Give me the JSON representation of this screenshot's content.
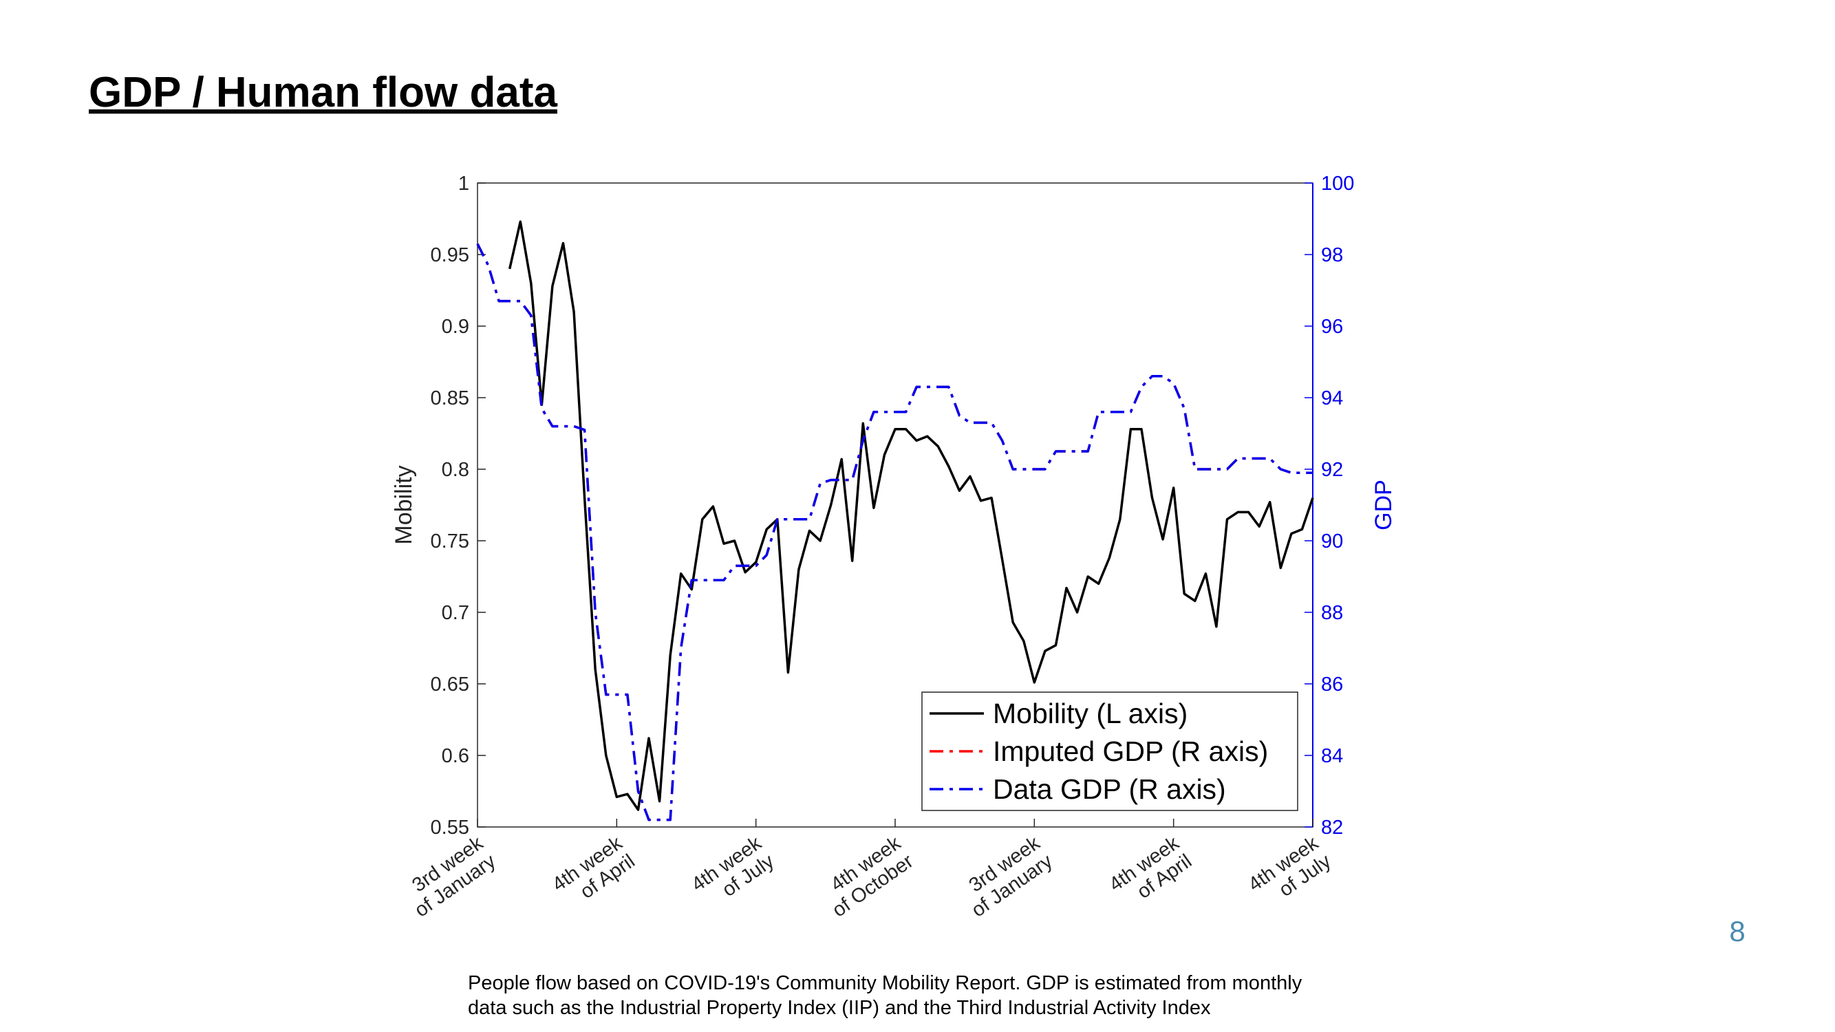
{
  "page_title": "GDP / Human flow data",
  "page_number": "8",
  "footnote": [
    "People flow based on COVID-19's Community Mobility Report. GDP is estimated from monthly",
    "data such as the Industrial Property Index (IIP) and the Third Industrial Activity Index"
  ],
  "chart_data": {
    "type": "line",
    "ylabel": "Mobility",
    "y2label": "GDP",
    "xlim": [
      0,
      78
    ],
    "xticks": [
      {
        "value": 0,
        "label": [
          "3rd week",
          "of January"
        ]
      },
      {
        "value": 13,
        "label": [
          "4th week",
          "of April"
        ]
      },
      {
        "value": 26,
        "label": [
          "4th week",
          "of July"
        ]
      },
      {
        "value": 39,
        "label": [
          "4th week",
          "of October"
        ]
      },
      {
        "value": 52,
        "label": [
          "3rd week",
          "of January"
        ]
      },
      {
        "value": 65,
        "label": [
          "4th week",
          "of April"
        ]
      },
      {
        "value": 78,
        "label": [
          "4th week",
          "of July"
        ]
      }
    ],
    "ylim": [
      0.55,
      1
    ],
    "yticks": [
      0.55,
      0.6,
      0.65,
      0.7,
      0.75,
      0.8,
      0.85,
      0.9,
      0.95,
      1
    ],
    "y2lim": [
      82,
      100
    ],
    "y2ticks": [
      82,
      84,
      86,
      88,
      90,
      92,
      94,
      96,
      98,
      100
    ],
    "y2color": "#0000ee",
    "legend": "lower right",
    "x": [
      0,
      1,
      2,
      3,
      4,
      5,
      6,
      7,
      8,
      9,
      10,
      11,
      12,
      13,
      14,
      15,
      16,
      17,
      18,
      19,
      20,
      21,
      22,
      23,
      24,
      25,
      26,
      27,
      28,
      29,
      30,
      31,
      32,
      33,
      34,
      35,
      36,
      37,
      38,
      39,
      40,
      41,
      42,
      43,
      44,
      45,
      46,
      47,
      48,
      49,
      50,
      51,
      52,
      53,
      54,
      55,
      56,
      57,
      58,
      59,
      60,
      61,
      62,
      63,
      64,
      65,
      66,
      67,
      68,
      69,
      70,
      71,
      72,
      73,
      74,
      75,
      76,
      77,
      78
    ],
    "series": [
      {
        "name": "Mobility (L axis)",
        "color": "#000000",
        "style": "solid",
        "values": [
          null,
          null,
          null,
          0.94,
          0.973,
          0.93,
          0.845,
          0.928,
          0.958,
          0.91,
          0.78,
          0.66,
          0.6,
          0.571,
          0.573,
          0.562,
          0.612,
          0.568,
          0.67,
          0.727,
          0.716,
          0.765,
          0.774,
          0.748,
          0.75,
          0.728,
          0.735,
          0.758,
          0.765,
          0.658,
          0.73,
          0.757,
          0.75,
          0.775,
          0.807,
          0.736,
          0.832,
          0.773,
          0.81,
          0.828,
          0.828,
          0.82,
          0.823,
          0.816,
          0.802,
          0.785,
          0.795,
          0.778,
          0.78,
          0.737,
          0.693,
          0.68,
          0.651,
          0.673,
          0.677,
          0.717,
          0.7,
          0.725,
          0.72,
          0.738,
          0.765,
          0.828,
          0.828,
          0.78,
          0.751,
          0.787,
          0.713,
          0.708,
          0.727,
          0.69,
          0.765,
          0.77,
          0.77,
          0.76,
          0.777,
          0.731,
          0.755,
          0.758,
          0.78
        ]
      },
      {
        "name": "Imputed GDP (R axis)",
        "color": "#ff0000",
        "style": "dashdot",
        "axis": "y2",
        "values": [
          98.3,
          97.7,
          96.7,
          96.7,
          96.7,
          96.3,
          93.7,
          93.2,
          93.2,
          93.2,
          93.1,
          88,
          85.7,
          85.7,
          85.7,
          83,
          82.2,
          82.2,
          82.2,
          87,
          88.9,
          88.9,
          88.9,
          88.9,
          89.3,
          89.3,
          89.3,
          89.6,
          90.6,
          90.6,
          90.6,
          90.6,
          91.6,
          91.7,
          91.7,
          91.7,
          92.8,
          93.6,
          93.6,
          93.6,
          93.6,
          94.3,
          94.3,
          94.3,
          94.3,
          93.5,
          93.3,
          93.3,
          93.3,
          92.8,
          92,
          92,
          92,
          92,
          92.5,
          92.5,
          92.5,
          92.5,
          93.6,
          93.6,
          93.6,
          93.6,
          94.3,
          94.6,
          94.6,
          94.4,
          93.7,
          92,
          92,
          92,
          92,
          92.3,
          92.3,
          92.3,
          92.3,
          92,
          91.9,
          91.9,
          91.9
        ]
      },
      {
        "name": "Data GDP (R axis)",
        "color": "#0000ee",
        "style": "dashdot",
        "axis": "y2",
        "values": [
          98.3,
          97.7,
          96.7,
          96.7,
          96.7,
          96.3,
          93.7,
          93.2,
          93.2,
          93.2,
          93.1,
          88,
          85.7,
          85.7,
          85.7,
          83,
          82.2,
          82.2,
          82.2,
          87,
          88.9,
          88.9,
          88.9,
          88.9,
          89.3,
          89.3,
          89.3,
          89.6,
          90.6,
          90.6,
          90.6,
          90.6,
          91.6,
          91.7,
          91.7,
          91.7,
          92.8,
          93.6,
          93.6,
          93.6,
          93.6,
          94.3,
          94.3,
          94.3,
          94.3,
          93.5,
          93.3,
          93.3,
          93.3,
          92.8,
          92,
          92,
          92,
          92,
          92.5,
          92.5,
          92.5,
          92.5,
          93.6,
          93.6,
          93.6,
          93.6,
          94.3,
          94.6,
          94.6,
          94.4,
          93.7,
          92,
          92,
          92,
          92,
          92.3,
          92.3,
          92.3,
          92.3,
          92,
          91.9,
          91.9,
          91.9
        ]
      }
    ]
  }
}
